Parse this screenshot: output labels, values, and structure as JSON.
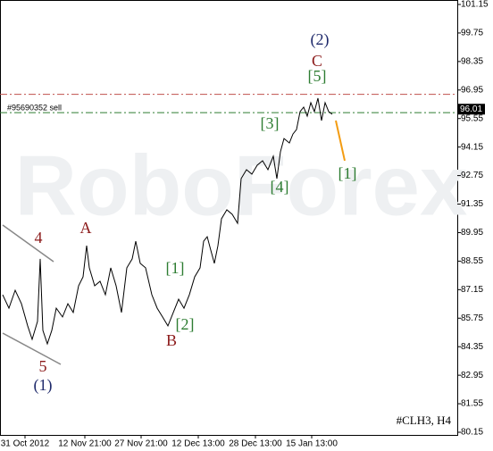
{
  "chart_data": {
    "type": "line",
    "symbol": "#CLH3, H4",
    "watermark": "RoboForex",
    "order_label": "#95690352 sell",
    "price_label": 96.01,
    "order_level": 95.84,
    "resistance_level": 96.74,
    "x": [
      3,
      10,
      17,
      24,
      31,
      36,
      42,
      45,
      48,
      53,
      58,
      63,
      70,
      76,
      82,
      88,
      93,
      97,
      100,
      106,
      112,
      118,
      124,
      130,
      136,
      142,
      148,
      152,
      157,
      163,
      170,
      176,
      182,
      188,
      194,
      200,
      206,
      212,
      218,
      224,
      228,
      232,
      236,
      240,
      244,
      248,
      254,
      260,
      266,
      270,
      276,
      282,
      288,
      294,
      300,
      306,
      310,
      314,
      318,
      324,
      328,
      332,
      336,
      340,
      344,
      348,
      352,
      356,
      360,
      364,
      368,
      372
    ],
    "series": [
      {
        "color": "#000000",
        "values": [
          86.9,
          86.24,
          87.12,
          86.46,
          85.37,
          84.71,
          85.59,
          88.66,
          85.15,
          84.49,
          85.15,
          86.24,
          85.81,
          86.46,
          86.03,
          87.34,
          87.78,
          89.31,
          88.22,
          87.34,
          87.56,
          86.9,
          88.22,
          87.34,
          86.03,
          88.22,
          88.66,
          89.53,
          88.44,
          88.22,
          86.9,
          86.24,
          85.81,
          85.37,
          86.03,
          86.68,
          86.24,
          86.9,
          87.78,
          88.22,
          89.53,
          89.75,
          89.09,
          88.44,
          89.31,
          90.63,
          91.07,
          90.85,
          90.41,
          92.6,
          93.04,
          92.82,
          93.26,
          93.48,
          93.04,
          93.7,
          92.6,
          93.92,
          94.57,
          94.35,
          94.79,
          95.01,
          95.89,
          96.11,
          95.67,
          96.33,
          95.89,
          96.55,
          95.45,
          96.33,
          95.89,
          95.76
        ]
      }
    ],
    "forecast": {
      "color": "#f39c12",
      "x": [
        376,
        386
      ],
      "values": [
        95.45,
        93.48
      ]
    },
    "xlim": [
      0,
      512
    ],
    "xticks": [
      {
        "value": 28,
        "label": "31 Oct 2012"
      },
      {
        "value": 95,
        "label": "12 Nov 21:00"
      },
      {
        "value": 158,
        "label": "27 Nov 21:00"
      },
      {
        "value": 222,
        "label": "12 Dec 13:00"
      },
      {
        "value": 286,
        "label": "28 Dec 13:00"
      },
      {
        "value": 349,
        "label": "15 Jan 13:00"
      }
    ],
    "ylim": [
      80.15,
      101.15
    ],
    "yticks": [
      101.15,
      99.75,
      98.35,
      96.95,
      95.55,
      94.15,
      92.75,
      91.35,
      89.95,
      88.55,
      87.15,
      85.75,
      84.35,
      82.95,
      81.55,
      80.15
    ],
    "annotations": [
      {
        "text": "(2)",
        "color": "#1f2a6b"
      },
      {
        "text": "C",
        "color": "#8b1a1a"
      },
      {
        "text": "[5]",
        "color": "#2e7d32"
      },
      {
        "text": "[3]",
        "color": "#2e7d32"
      },
      {
        "text": "[4]",
        "color": "#2e7d32"
      },
      {
        "text": "[1]",
        "color": "#2e7d32"
      },
      {
        "text": "4",
        "color": "#8b1a1a"
      },
      {
        "text": "A",
        "color": "#8b1a1a"
      },
      {
        "text": "[1]",
        "color": "#2e7d32"
      },
      {
        "text": "[2]",
        "color": "#2e7d32"
      },
      {
        "text": "B",
        "color": "#8b1a1a"
      },
      {
        "text": "5",
        "color": "#8b1a1a"
      },
      {
        "text": "(1)",
        "color": "#1f2a6b"
      }
    ]
  }
}
